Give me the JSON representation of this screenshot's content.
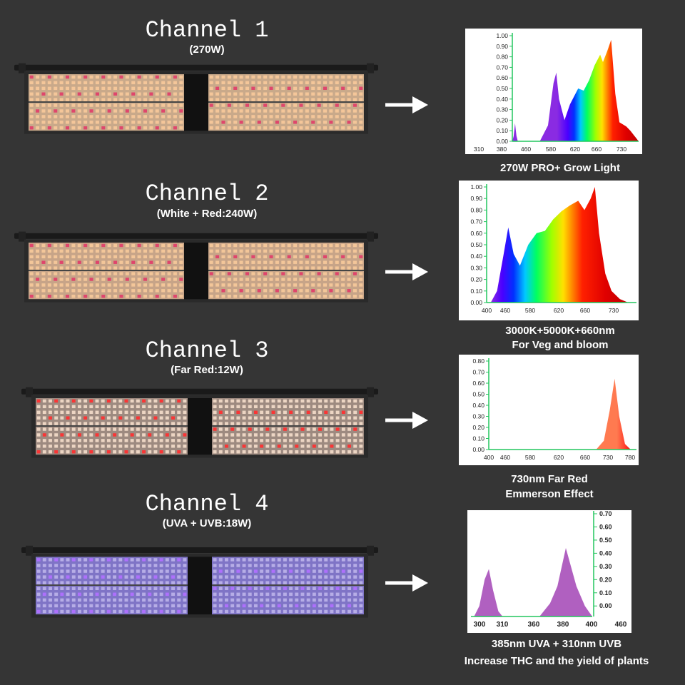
{
  "channels": [
    {
      "title": "Channel 1",
      "subtitle": "(270W)",
      "caption": [
        "270W PRO+ Grow Light"
      ],
      "chart_data": {
        "type": "area",
        "title": "",
        "xlabel": "",
        "ylabel": "",
        "x_ticks": [
          310,
          380,
          460,
          580,
          620,
          660,
          730
        ],
        "y_ticks": [
          0.0,
          0.1,
          0.2,
          0.3,
          0.4,
          0.5,
          0.6,
          0.7,
          0.8,
          0.9,
          1.0
        ],
        "ylim": [
          0,
          1.0
        ],
        "grid": false,
        "series": [
          {
            "points": [
              [
                300,
                0
              ],
              [
                305,
                0.05
              ],
              [
                310,
                0.17
              ],
              [
                315,
                0.05
              ],
              [
                320,
                0
              ]
            ]
          },
          {
            "points": [
              [
                400,
                0
              ],
              [
                430,
                0.15
              ],
              [
                450,
                0.55
              ],
              [
                460,
                0.65
              ],
              [
                470,
                0.4
              ],
              [
                490,
                0.2
              ],
              [
                510,
                0.35
              ],
              [
                540,
                0.5
              ],
              [
                560,
                0.48
              ],
              [
                580,
                0.58
              ],
              [
                600,
                0.72
              ],
              [
                620,
                0.82
              ],
              [
                630,
                0.75
              ],
              [
                645,
                0.85
              ],
              [
                660,
                0.96
              ],
              [
                675,
                0.45
              ],
              [
                690,
                0.18
              ],
              [
                715,
                0.14
              ],
              [
                730,
                0.1
              ],
              [
                760,
                0
              ]
            ]
          }
        ]
      }
    },
    {
      "title": "Channel 2",
      "subtitle": "(White + Red:240W)",
      "caption": [
        "3000K+5000K+660nm",
        "For Veg and bloom"
      ],
      "chart_data": {
        "type": "area",
        "title": "",
        "xlabel": "",
        "ylabel": "",
        "x_ticks": [
          400,
          460,
          580,
          620,
          660,
          730
        ],
        "y_ticks": [
          0.0,
          0.1,
          0.2,
          0.3,
          0.4,
          0.5,
          0.6,
          0.7,
          0.8,
          0.9,
          1.0
        ],
        "ylim": [
          0,
          1.0
        ],
        "grid": false,
        "series": [
          {
            "points": [
              [
                410,
                0
              ],
              [
                425,
                0.1
              ],
              [
                440,
                0.4
              ],
              [
                452,
                0.65
              ],
              [
                465,
                0.42
              ],
              [
                480,
                0.32
              ],
              [
                500,
                0.5
              ],
              [
                520,
                0.6
              ],
              [
                540,
                0.62
              ],
              [
                560,
                0.72
              ],
              [
                580,
                0.79
              ],
              [
                600,
                0.84
              ],
              [
                620,
                0.88
              ],
              [
                635,
                0.8
              ],
              [
                650,
                0.9
              ],
              [
                660,
                1.0
              ],
              [
                670,
                0.6
              ],
              [
                685,
                0.25
              ],
              [
                700,
                0.1
              ],
              [
                720,
                0.03
              ],
              [
                740,
                0
              ]
            ]
          }
        ]
      }
    },
    {
      "title": "Channel 3",
      "subtitle": "(Far Red:12W)",
      "caption": [
        "730nm  Far Red",
        "Emmerson Effect"
      ],
      "chart_data": {
        "type": "area",
        "title": "",
        "xlabel": "",
        "ylabel": "",
        "x_ticks": [
          400,
          460,
          580,
          620,
          660,
          730,
          780
        ],
        "y_ticks": [
          0.0,
          0.1,
          0.2,
          0.3,
          0.4,
          0.5,
          0.6,
          0.7,
          0.8
        ],
        "ylim": [
          0,
          0.8
        ],
        "grid": false,
        "series": [
          {
            "points": [
              [
                680,
                0
              ],
              [
                700,
                0.08
              ],
              [
                715,
                0.35
              ],
              [
                728,
                0.64
              ],
              [
                740,
                0.3
              ],
              [
                755,
                0.05
              ],
              [
                770,
                0
              ]
            ]
          }
        ]
      }
    },
    {
      "title": "Channel 4",
      "subtitle": "(UVA + UVB:18W)",
      "caption": [
        "385nm UVA + 310nm  UVB",
        "Increase  THC and the yield of plants"
      ],
      "chart_data": {
        "type": "area",
        "title": "",
        "xlabel": "",
        "ylabel": "",
        "x_ticks": [
          300,
          310,
          360,
          380,
          400,
          460
        ],
        "y_ticks": [
          0.0,
          0.1,
          0.2,
          0.3,
          0.4,
          0.5,
          0.6,
          0.7
        ],
        "ylim": [
          -0.08,
          0.7
        ],
        "grid": false,
        "series": [
          {
            "points": [
              [
                293,
                -0.08
              ],
              [
                298,
                0.0
              ],
              [
                303,
                0.2
              ],
              [
                307,
                0.28
              ],
              [
                311,
                0.12
              ],
              [
                316,
                -0.04
              ],
              [
                320,
                -0.08
              ]
            ]
          },
          {
            "points": [
              [
                355,
                -0.08
              ],
              [
                365,
                0.02
              ],
              [
                372,
                0.15
              ],
              [
                380,
                0.44
              ],
              [
                390,
                0.15
              ],
              [
                398,
                0.0
              ],
              [
                405,
                -0.08
              ]
            ]
          }
        ]
      }
    }
  ]
}
